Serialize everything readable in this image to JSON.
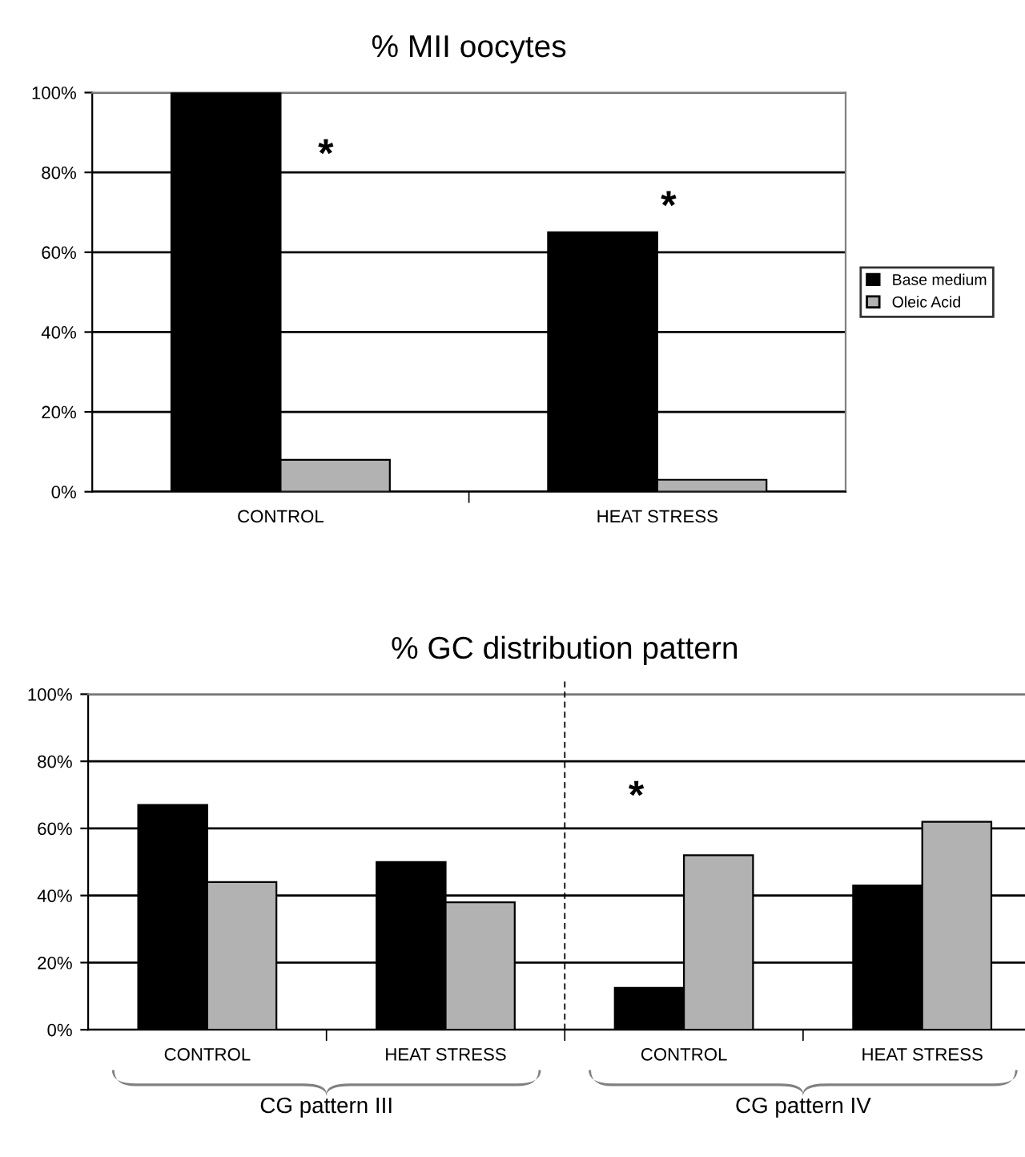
{
  "chart_data": [
    {
      "type": "bar",
      "title": "% MII oocytes",
      "categories": [
        "CONTROL",
        "HEAT STRESS"
      ],
      "series": [
        {
          "name": "Base medium",
          "color": "#000000",
          "values": [
            100,
            65
          ]
        },
        {
          "name": "Oleic Acid",
          "color": "#b2b2b2",
          "values": [
            8,
            3
          ]
        }
      ],
      "ylim": [
        0,
        100
      ],
      "yticks": [
        {
          "value": 0,
          "label": "0%"
        },
        {
          "value": 20,
          "label": "20%"
        },
        {
          "value": 40,
          "label": "40%"
        },
        {
          "value": 60,
          "label": "60%"
        },
        {
          "value": 80,
          "label": "80%"
        },
        {
          "value": 100,
          "label": "100%"
        }
      ],
      "grid": "y",
      "legend": "right",
      "annotations": [
        "*",
        "*"
      ]
    },
    {
      "type": "bar",
      "title": "% GC distribution pattern",
      "categories": [
        "CONTROL",
        "HEAT STRESS",
        "CONTROL",
        "HEAT STRESS"
      ],
      "series": [
        {
          "color": "#000000",
          "values": [
            67,
            50,
            12.5,
            43
          ]
        },
        {
          "color": "#b2b2b2",
          "values": [
            44,
            38,
            52,
            62
          ]
        }
      ],
      "ylim": [
        0,
        100
      ],
      "yticks": [
        {
          "value": 0,
          "label": "0%"
        },
        {
          "value": 20,
          "label": "20%"
        },
        {
          "value": 40,
          "label": "40%"
        },
        {
          "value": 60,
          "label": "60%"
        },
        {
          "value": 80,
          "label": "80%"
        },
        {
          "value": 100,
          "label": "100%"
        }
      ],
      "grid": "y",
      "legend": false,
      "annotations": [
        "*",
        "CG pattern III",
        "CG pattern IV"
      ]
    }
  ]
}
